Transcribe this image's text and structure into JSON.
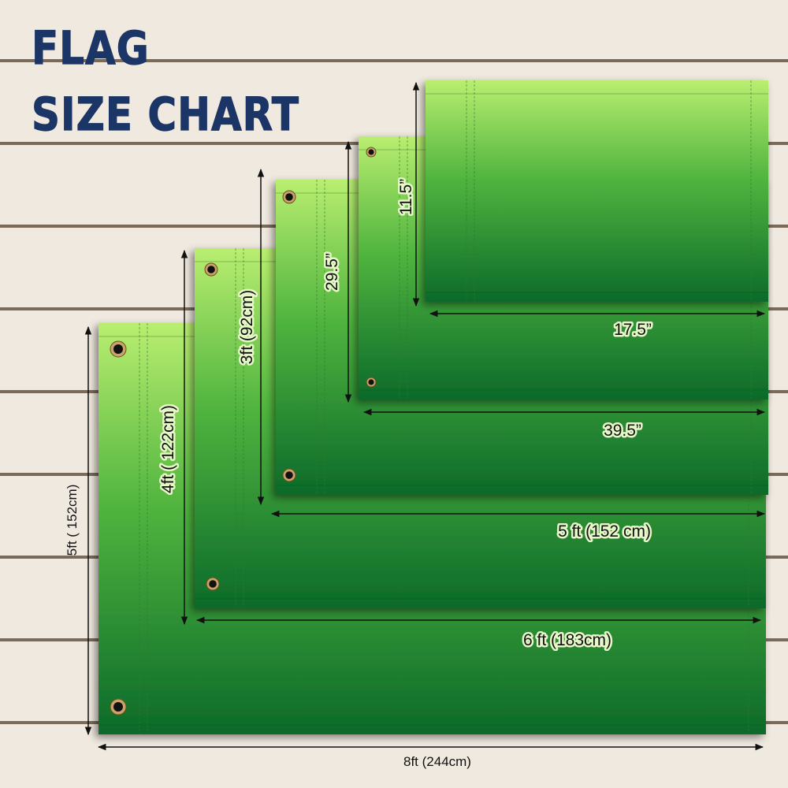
{
  "title": {
    "line1": "FLAG",
    "line2": "SIZE CHART"
  },
  "colors": {
    "title": "#1b3566",
    "flag_top": "#b7ec6e",
    "flag_bottom": "#0d6b2a",
    "wood": "#efe9df",
    "plank_gap": "#6b5a4a"
  },
  "flags": [
    {
      "width_label": "8ft (244cm)",
      "height_label": "5ft ( 152cm)"
    },
    {
      "width_label": "6 ft (183cm)",
      "height_label": "4ft ( 122cm)"
    },
    {
      "width_label": "5 ft (152 cm)",
      "height_label": "3ft (92cm)"
    },
    {
      "width_label": "39.5”",
      "height_label": "29.5”"
    },
    {
      "width_label": "17.5”",
      "height_label": "11.5”"
    }
  ]
}
